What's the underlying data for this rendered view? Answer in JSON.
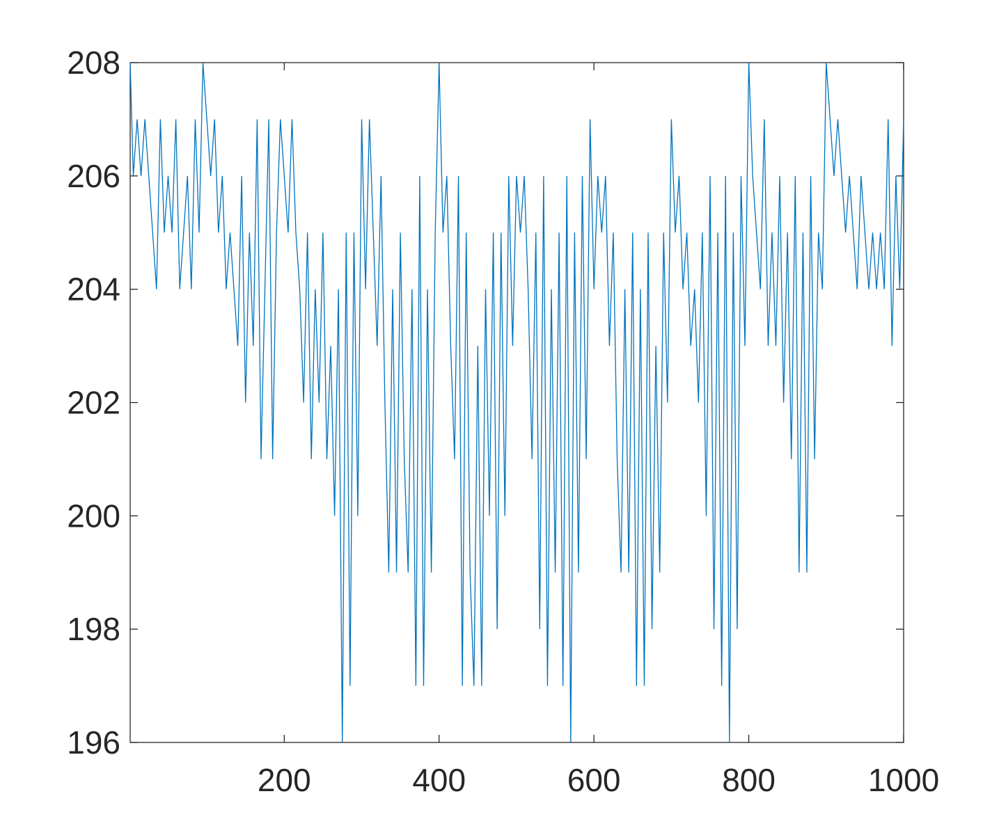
{
  "chart_data": {
    "type": "line",
    "color": "#0072bd",
    "xlim": [
      1,
      1000
    ],
    "ylim": [
      196,
      208
    ],
    "xticks": [
      200,
      400,
      600,
      800,
      1000
    ],
    "yticks": [
      196,
      198,
      200,
      202,
      204,
      206,
      208
    ],
    "x": [
      1,
      5,
      10,
      15,
      20,
      25,
      30,
      35,
      40,
      45,
      50,
      55,
      60,
      65,
      70,
      75,
      80,
      85,
      90,
      95,
      100,
      105,
      110,
      115,
      120,
      125,
      130,
      135,
      140,
      145,
      150,
      155,
      160,
      165,
      170,
      175,
      180,
      185,
      190,
      195,
      200,
      205,
      210,
      215,
      220,
      225,
      230,
      235,
      240,
      245,
      250,
      255,
      260,
      265,
      270,
      275,
      280,
      285,
      290,
      295,
      300,
      305,
      310,
      315,
      320,
      325,
      330,
      335,
      340,
      345,
      350,
      355,
      360,
      365,
      370,
      375,
      380,
      385,
      390,
      395,
      400,
      405,
      410,
      415,
      420,
      425,
      430,
      435,
      440,
      445,
      450,
      455,
      460,
      465,
      470,
      475,
      480,
      485,
      490,
      495,
      500,
      505,
      510,
      515,
      520,
      525,
      530,
      535,
      540,
      545,
      550,
      555,
      560,
      565,
      570,
      575,
      580,
      585,
      590,
      595,
      600,
      605,
      610,
      615,
      620,
      625,
      630,
      635,
      640,
      645,
      650,
      655,
      660,
      665,
      670,
      675,
      680,
      685,
      690,
      695,
      700,
      705,
      710,
      715,
      720,
      725,
      730,
      735,
      740,
      745,
      750,
      755,
      760,
      765,
      770,
      775,
      780,
      785,
      790,
      795,
      800,
      805,
      810,
      815,
      820,
      825,
      830,
      835,
      840,
      845,
      850,
      855,
      860,
      865,
      870,
      875,
      880,
      885,
      890,
      895,
      900,
      905,
      910,
      915,
      920,
      925,
      930,
      935,
      940,
      945,
      950,
      955,
      960,
      965,
      970,
      975,
      980,
      985,
      990,
      995,
      1000
    ],
    "values": [
      208,
      206,
      207,
      206,
      207,
      206,
      205,
      204,
      207,
      205,
      206,
      205,
      207,
      204,
      205,
      206,
      204,
      207,
      205,
      208,
      207,
      206,
      207,
      205,
      206,
      204,
      205,
      204,
      203,
      206,
      202,
      205,
      203,
      207,
      201,
      204,
      207,
      201,
      205,
      207,
      206,
      205,
      207,
      205,
      204,
      202,
      205,
      201,
      204,
      202,
      205,
      201,
      203,
      200,
      204,
      196,
      205,
      197,
      205,
      200,
      207,
      204,
      207,
      205,
      203,
      206,
      202,
      199,
      204,
      199,
      205,
      201,
      199,
      204,
      197,
      206,
      197,
      204,
      199,
      205,
      208,
      205,
      206,
      203,
      201,
      206,
      197,
      205,
      199,
      197,
      203,
      197,
      204,
      200,
      205,
      198,
      205,
      200,
      206,
      203,
      206,
      205,
      206,
      204,
      201,
      205,
      198,
      206,
      197,
      204,
      199,
      205,
      197,
      206,
      196,
      205,
      199,
      206,
      201,
      207,
      204,
      206,
      205,
      206,
      203,
      205,
      201,
      199,
      204,
      199,
      205,
      197,
      204,
      197,
      205,
      198,
      203,
      199,
      205,
      202,
      207,
      205,
      206,
      204,
      205,
      203,
      204,
      202,
      205,
      200,
      206,
      198,
      205,
      197,
      206,
      196,
      205,
      198,
      206,
      203,
      208,
      206,
      205,
      204,
      207,
      203,
      205,
      203,
      206,
      202,
      205,
      201,
      206,
      199,
      205,
      199,
      206,
      201,
      205,
      204,
      208,
      207,
      206,
      207,
      206,
      205,
      206,
      205,
      204,
      206,
      205,
      204,
      205,
      204,
      205,
      204,
      207,
      203,
      206,
      204,
      207
    ]
  }
}
